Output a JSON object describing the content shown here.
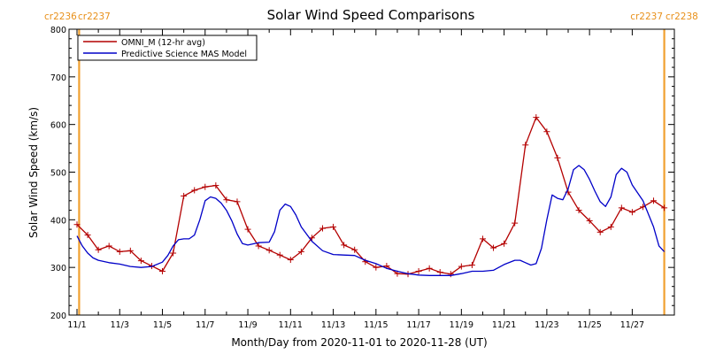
{
  "chart_data": {
    "type": "line",
    "title": "Solar Wind Speed Comparisons",
    "xlabel": "Month/Day from 2020-11-01 to 2020-11-28 (UT)",
    "ylabel": "Solar Wind Speed (km/s)",
    "ylim": [
      200,
      800
    ],
    "xlim": [
      0,
      27.6
    ],
    "yticks": [
      200,
      300,
      400,
      500,
      600,
      700,
      800
    ],
    "xticks": [
      {
        "day": 0,
        "label": "11/1"
      },
      {
        "day": 2,
        "label": "11/3"
      },
      {
        "day": 4,
        "label": "11/5"
      },
      {
        "day": 6,
        "label": "11/7"
      },
      {
        "day": 8,
        "label": "11/9"
      },
      {
        "day": 10,
        "label": "11/11"
      },
      {
        "day": 12,
        "label": "11/13"
      },
      {
        "day": 14,
        "label": "11/15"
      },
      {
        "day": 16,
        "label": "11/17"
      },
      {
        "day": 18,
        "label": "11/19"
      },
      {
        "day": 20,
        "label": "11/21"
      },
      {
        "day": 22,
        "label": "11/23"
      },
      {
        "day": 24,
        "label": "11/25"
      },
      {
        "day": 26,
        "label": "11/27"
      }
    ],
    "carrington_markers": [
      {
        "day": 0.1,
        "left_label": "cr2236",
        "right_label": "cr2237",
        "side": "left"
      },
      {
        "day": 27.5,
        "left_label": "cr2237",
        "right_label": "cr2238",
        "side": "right"
      }
    ],
    "legend_position": "top-left",
    "colors": {
      "omni": "#b40000",
      "model": "#0000c8",
      "carrington": "#f0a030",
      "axis": "#000000"
    },
    "series": [
      {
        "name": "OMNI_M (12-hr avg)",
        "color": "#b40000",
        "markers": "plus",
        "x": [
          0,
          0.5,
          1,
          1.5,
          2,
          2.5,
          3,
          3.5,
          4,
          4.5,
          5,
          5.5,
          6,
          6.5,
          7,
          7.5,
          8,
          8.5,
          9,
          9.5,
          10,
          10.5,
          11,
          11.5,
          12,
          12.5,
          13,
          13.5,
          14,
          14.5,
          15,
          15.5,
          16,
          16.5,
          17,
          17.5,
          18,
          18.5,
          19,
          19.5,
          20,
          20.5,
          21,
          21.5,
          22,
          22.5,
          23,
          23.5,
          24,
          24.5,
          25,
          25.5,
          26,
          26.5,
          27,
          27.5
        ],
        "values": [
          390,
          368,
          337,
          345,
          333,
          335,
          314,
          303,
          292,
          330,
          450,
          462,
          469,
          472,
          442,
          438,
          380,
          345,
          336,
          326,
          316,
          333,
          362,
          382,
          385,
          347,
          337,
          312,
          300,
          303,
          287,
          286,
          292,
          298,
          290,
          286,
          302,
          305,
          360,
          341,
          350,
          393,
          557,
          615,
          585,
          530,
          458,
          420,
          398,
          374,
          385,
          425,
          416,
          427,
          440,
          425
        ]
      },
      {
        "name": "Predictive Science MAS Model",
        "color": "#0000c8",
        "markers": "none",
        "x": [
          0,
          0.25,
          0.5,
          0.75,
          1,
          1.5,
          2,
          2.5,
          3,
          3.5,
          4,
          4.25,
          4.5,
          4.75,
          5,
          5.25,
          5.5,
          5.75,
          6,
          6.25,
          6.5,
          6.75,
          7,
          7.25,
          7.5,
          7.75,
          8,
          8.5,
          9,
          9.25,
          9.5,
          9.75,
          10,
          10.25,
          10.5,
          11,
          11.5,
          12,
          12.5,
          13,
          13.5,
          14,
          14.5,
          15,
          15.5,
          16,
          16.5,
          17,
          17.5,
          18,
          18.5,
          19,
          19.5,
          20,
          20.5,
          20.75,
          21,
          21.25,
          21.5,
          21.75,
          22,
          22.25,
          22.5,
          22.75,
          23,
          23.25,
          23.5,
          23.75,
          24,
          24.25,
          24.5,
          24.75,
          25,
          25.25,
          25.5,
          25.75,
          26,
          26.5,
          27,
          27.25,
          27.5
        ],
        "values": [
          366,
          345,
          330,
          320,
          315,
          310,
          307,
          302,
          300,
          302,
          311,
          325,
          345,
          358,
          360,
          360,
          368,
          400,
          440,
          448,
          445,
          435,
          420,
          398,
          370,
          350,
          347,
          352,
          353,
          375,
          420,
          433,
          428,
          410,
          385,
          355,
          335,
          327,
          326,
          325,
          315,
          308,
          298,
          292,
          287,
          284,
          283,
          283,
          283,
          287,
          292,
          292,
          294,
          306,
          315,
          315,
          310,
          305,
          308,
          340,
          400,
          452,
          445,
          442,
          465,
          505,
          514,
          505,
          485,
          460,
          438,
          428,
          448,
          495,
          508,
          500,
          473,
          440,
          385,
          345,
          333
        ]
      }
    ]
  }
}
